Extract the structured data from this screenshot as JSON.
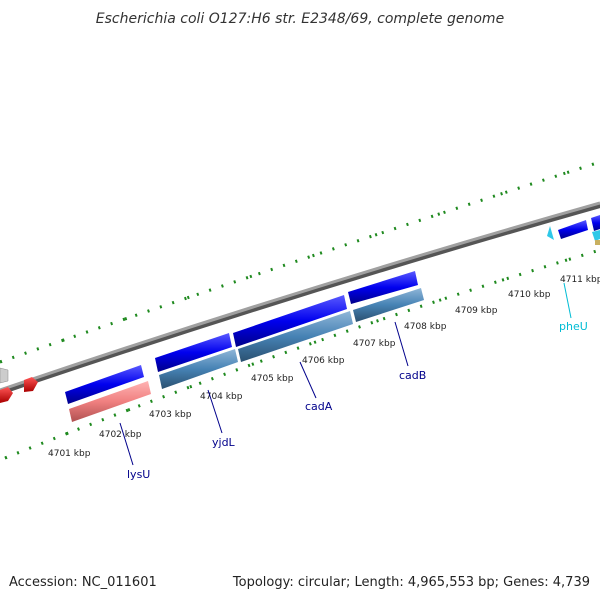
{
  "title": "Escherichia coli O127:H6 str. E2348/69, complete genome",
  "footer": {
    "accession": "Accession: NC_011601",
    "summary": "Topology: circular; Length: 4,965,553 bp; Genes: 4,739"
  },
  "colors": {
    "backbone": "#8c8c8c",
    "tick": "#1f8a1f",
    "forward_gene": "#0000ee",
    "reverse_gene": "#4682b4",
    "rna_gene": "#f08080",
    "other_feature": "#ee0000",
    "label_blue": "#00008b",
    "label_cyan": "#00bcd4"
  },
  "scale_labels": [
    "4701 kbp",
    "4702 kbp",
    "4703 kbp",
    "4704 kbp",
    "4705 kbp",
    "4706 kbp",
    "4707 kbp",
    "4708 kbp",
    "4709 kbp",
    "4710 kbp",
    "4711 kbp"
  ],
  "gene_labels": [
    {
      "name": "lysU",
      "color": "#00008b"
    },
    {
      "name": "yjdL",
      "color": "#00008b"
    },
    {
      "name": "cadA",
      "color": "#00008b"
    },
    {
      "name": "cadB",
      "color": "#00008b"
    },
    {
      "name": "pheU",
      "color": "#00bcd4"
    }
  ]
}
